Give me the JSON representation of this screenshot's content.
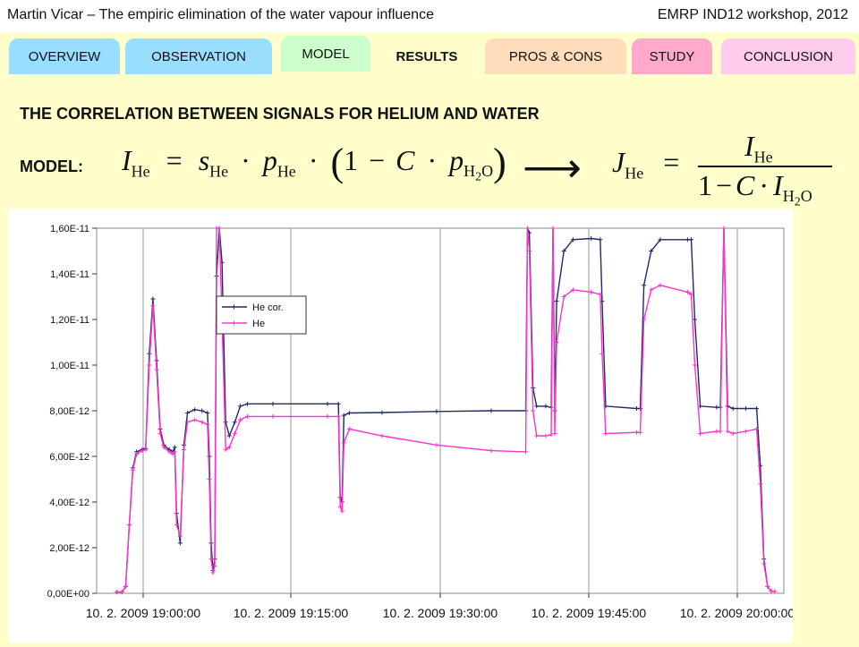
{
  "header": {
    "left": "Martin Vicar – The empiric elimination of the water vapour influence",
    "right": "EMRP IND12 workshop, 2012"
  },
  "tabs": [
    {
      "label": "OVERVIEW",
      "color": "#99ddff"
    },
    {
      "label": "OBSERVATION",
      "color": "#99ddff"
    },
    {
      "label": "MODEL",
      "color": "#ccffcc"
    },
    {
      "label": "RESULTS",
      "color": "#ffffcc",
      "active": true
    },
    {
      "label": "PROS & CONS",
      "color": "#ffddbb"
    },
    {
      "label": "STUDY",
      "color": "#ffaacc"
    },
    {
      "label": "CONCLUSION",
      "color": "#ffccee"
    }
  ],
  "main": {
    "title": "THE CORRELATION BETWEEN SIGNALS FOR HELIUM AND WATER",
    "model_label": "MODEL:"
  },
  "formula": {
    "lhs": "I",
    "lhs_sub": "He",
    "s": "s",
    "s_sub": "He",
    "p": "p",
    "p_sub": "He",
    "one": "1",
    "C": "C",
    "p2": "p",
    "p2_sub": "H",
    "p2_sub2": "2",
    "p2_sub3": "O",
    "arrow": "⟶",
    "J": "J",
    "J_sub": "He",
    "num": "I",
    "num_sub": "He",
    "den_one": "1",
    "den_C": "C",
    "den_I": "I",
    "den_sub": "H",
    "den_sub2": "2",
    "den_sub3": "O"
  },
  "chart_data": {
    "type": "line",
    "xlabel": "",
    "ylabel": "",
    "ylim": [
      0,
      1.6e-11
    ],
    "y_ticks": [
      "0,00E+00",
      "2,00E-12",
      "4,00E-12",
      "6,00E-12",
      "8,00E-12",
      "1,00E-11",
      "1,20E-11",
      "1,40E-11",
      "1,60E-11"
    ],
    "x_ticks": [
      "10. 2. 2009 19:00:00",
      "10. 2. 2009 19:15:00",
      "10. 2. 2009 19:30:00",
      "10. 2. 2009 19:45:00",
      "10. 2. 2009 20:00:00"
    ],
    "xlim_minutes": [
      -12.4,
      24.8
    ],
    "legend_position": "upper-left",
    "grid": "vertical",
    "series": [
      {
        "name": "He cor.",
        "color": "#1f2a6b",
        "points": [
          [
            -11.6,
            0.06
          ],
          [
            -11.3,
            0.06
          ],
          [
            -11.1,
            0.3
          ],
          [
            -10.9,
            3.0
          ],
          [
            -10.7,
            5.5
          ],
          [
            -10.5,
            6.2
          ],
          [
            -10.2,
            6.3
          ],
          [
            -10.0,
            6.35
          ],
          [
            -9.8,
            10.5
          ],
          [
            -9.6,
            12.9
          ],
          [
            -9.4,
            10.2
          ],
          [
            -9.2,
            7.2
          ],
          [
            -9.0,
            6.5
          ],
          [
            -8.7,
            6.3
          ],
          [
            -8.5,
            6.2
          ],
          [
            -8.4,
            6.4
          ],
          [
            -8.3,
            3.5
          ],
          [
            -8.1,
            2.2
          ],
          [
            -7.9,
            6.5
          ],
          [
            -7.7,
            7.9
          ],
          [
            -7.3,
            8.05
          ],
          [
            -6.9,
            8.0
          ],
          [
            -6.6,
            7.9
          ],
          [
            -6.5,
            6.0
          ],
          [
            -6.4,
            2.2
          ],
          [
            -6.3,
            1.0
          ],
          [
            -6.2,
            1.5
          ],
          [
            -6.1,
            13.9
          ],
          [
            -5.95,
            16.0
          ],
          [
            -5.8,
            14.5
          ],
          [
            -5.6,
            7.5
          ],
          [
            -5.4,
            6.9
          ],
          [
            -5.1,
            7.5
          ],
          [
            -4.8,
            8.2
          ],
          [
            -4.4,
            8.3
          ],
          [
            -3.0,
            8.3
          ],
          [
            0.0,
            8.3
          ],
          [
            0.6,
            8.3
          ],
          [
            0.7,
            4.2
          ],
          [
            0.8,
            4.0
          ],
          [
            0.9,
            7.8
          ],
          [
            1.2,
            7.9
          ],
          [
            3.0,
            7.92
          ],
          [
            6.0,
            7.97
          ],
          [
            9.0,
            8.0
          ],
          [
            10.9,
            8.0
          ],
          [
            11.0,
            16.0
          ],
          [
            11.1,
            15.8
          ],
          [
            11.3,
            9.0
          ],
          [
            11.5,
            8.2
          ],
          [
            12.0,
            8.2
          ],
          [
            12.3,
            8.15
          ],
          [
            12.4,
            16.0
          ],
          [
            12.5,
            8.0
          ],
          [
            12.6,
            12.8
          ],
          [
            13.0,
            15.0
          ],
          [
            13.5,
            15.5
          ],
          [
            14.5,
            15.55
          ],
          [
            15.0,
            15.5
          ],
          [
            15.1,
            12.8
          ],
          [
            15.3,
            8.2
          ],
          [
            17.0,
            8.1
          ],
          [
            17.2,
            8.1
          ],
          [
            17.4,
            13.5
          ],
          [
            17.8,
            15.0
          ],
          [
            18.3,
            15.5
          ],
          [
            19.8,
            15.5
          ],
          [
            20.0,
            15.5
          ],
          [
            20.2,
            12.0
          ],
          [
            20.5,
            8.2
          ],
          [
            21.4,
            8.15
          ],
          [
            21.6,
            8.15
          ],
          [
            21.8,
            16.0
          ],
          [
            22.0,
            8.2
          ],
          [
            22.3,
            8.1
          ],
          [
            23.0,
            8.1
          ],
          [
            23.6,
            8.1
          ],
          [
            23.8,
            5.6
          ],
          [
            24.0,
            1.5
          ],
          [
            24.2,
            0.3
          ],
          [
            24.4,
            0.1
          ],
          [
            24.6,
            0.08
          ]
        ]
      },
      {
        "name": "He",
        "color": "#ff33cc",
        "points": [
          [
            -11.6,
            0.06
          ],
          [
            -11.3,
            0.06
          ],
          [
            -11.1,
            0.3
          ],
          [
            -10.9,
            3.0
          ],
          [
            -10.7,
            5.4
          ],
          [
            -10.5,
            6.1
          ],
          [
            -10.2,
            6.25
          ],
          [
            -10.0,
            6.3
          ],
          [
            -9.8,
            10.0
          ],
          [
            -9.6,
            12.6
          ],
          [
            -9.4,
            9.8
          ],
          [
            -9.2,
            7.0
          ],
          [
            -9.0,
            6.4
          ],
          [
            -8.7,
            6.2
          ],
          [
            -8.5,
            6.1
          ],
          [
            -8.4,
            6.2
          ],
          [
            -8.3,
            3.0
          ],
          [
            -8.1,
            2.5
          ],
          [
            -7.9,
            6.3
          ],
          [
            -7.7,
            7.5
          ],
          [
            -7.3,
            7.6
          ],
          [
            -6.9,
            7.5
          ],
          [
            -6.6,
            7.4
          ],
          [
            -6.5,
            5.0
          ],
          [
            -6.4,
            1.5
          ],
          [
            -6.3,
            0.9
          ],
          [
            -6.2,
            1.2
          ],
          [
            -6.1,
            16.0
          ],
          [
            -5.95,
            16.0
          ],
          [
            -5.8,
            12.0
          ],
          [
            -5.6,
            6.3
          ],
          [
            -5.4,
            6.4
          ],
          [
            -5.1,
            7.0
          ],
          [
            -4.8,
            7.6
          ],
          [
            -4.4,
            7.75
          ],
          [
            -3.0,
            7.75
          ],
          [
            0.0,
            7.75
          ],
          [
            0.6,
            7.75
          ],
          [
            0.7,
            3.8
          ],
          [
            0.8,
            3.6
          ],
          [
            0.9,
            6.6
          ],
          [
            1.2,
            7.2
          ],
          [
            3.0,
            6.9
          ],
          [
            6.0,
            6.5
          ],
          [
            9.0,
            6.25
          ],
          [
            10.9,
            6.2
          ],
          [
            11.0,
            16.0
          ],
          [
            11.1,
            15.0
          ],
          [
            11.3,
            8.0
          ],
          [
            11.5,
            6.9
          ],
          [
            12.0,
            6.9
          ],
          [
            12.3,
            6.95
          ],
          [
            12.4,
            16.0
          ],
          [
            12.5,
            7.0
          ],
          [
            12.6,
            11.0
          ],
          [
            13.0,
            13.0
          ],
          [
            13.5,
            13.3
          ],
          [
            14.5,
            13.2
          ],
          [
            15.0,
            13.1
          ],
          [
            15.1,
            10.5
          ],
          [
            15.3,
            7.0
          ],
          [
            17.0,
            7.05
          ],
          [
            17.2,
            7.05
          ],
          [
            17.4,
            12.0
          ],
          [
            17.8,
            13.3
          ],
          [
            18.3,
            13.5
          ],
          [
            19.8,
            13.2
          ],
          [
            20.0,
            13.1
          ],
          [
            20.2,
            10.0
          ],
          [
            20.5,
            7.0
          ],
          [
            21.4,
            7.1
          ],
          [
            21.6,
            7.1
          ],
          [
            21.8,
            16.0
          ],
          [
            22.0,
            7.1
          ],
          [
            22.3,
            7.0
          ],
          [
            23.0,
            7.1
          ],
          [
            23.6,
            7.2
          ],
          [
            23.8,
            4.8
          ],
          [
            24.0,
            1.3
          ],
          [
            24.2,
            0.3
          ],
          [
            24.4,
            0.1
          ],
          [
            24.6,
            0.08
          ]
        ]
      }
    ]
  }
}
